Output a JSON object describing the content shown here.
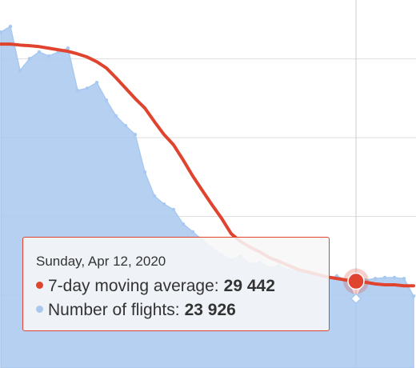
{
  "chart_data": {
    "type": "line",
    "categories": [
      null,
      null,
      null,
      null,
      null,
      null,
      null,
      null,
      null,
      null,
      null,
      null,
      null,
      null,
      null,
      null,
      null,
      null,
      null,
      null,
      null,
      null,
      null,
      null,
      null,
      null,
      null,
      null,
      null,
      null,
      null,
      null,
      null,
      null,
      null,
      null,
      null,
      "Sunday, Apr 12, 2020",
      null,
      null,
      null,
      null,
      null,
      null
    ],
    "series": [
      {
        "name": "7-day moving average",
        "color": "#e0442f",
        "values": [
          104700,
          104700,
          104400,
          104200,
          103900,
          103400,
          102900,
          102400,
          101600,
          100600,
          99100,
          97100,
          94000,
          90700,
          87400,
          84400,
          80100,
          76000,
          72700,
          67900,
          62800,
          58200,
          53700,
          49400,
          44500,
          42000,
          40200,
          38700,
          36900,
          35700,
          34400,
          33100,
          32400,
          31600,
          30800,
          30300,
          29800,
          29442,
          29100,
          28600,
          28300,
          28300,
          28000,
          28000
        ],
        "value_labels": [
          null,
          null,
          null,
          null,
          null,
          null,
          null,
          null,
          null,
          null,
          null,
          null,
          null,
          null,
          null,
          null,
          null,
          null,
          null,
          null,
          null,
          null,
          null,
          null,
          null,
          null,
          null,
          null,
          null,
          null,
          null,
          null,
          null,
          null,
          null,
          null,
          null,
          "29 442",
          null,
          null,
          null,
          null,
          null,
          null
        ]
      },
      {
        "name": "Number of flights",
        "color": "#a9c8f0",
        "values": [
          108500,
          110300,
          96300,
          100100,
          102200,
          100900,
          102200,
          103400,
          90000,
          90700,
          92500,
          86900,
          81900,
          78800,
          76000,
          64100,
          56500,
          53900,
          52200,
          47600,
          45100,
          42500,
          40000,
          37900,
          36200,
          37400,
          34900,
          35400,
          33600,
          34400,
          32900,
          32400,
          31900,
          31100,
          30300,
          31100,
          29800,
          23926,
          29800,
          30300,
          30600,
          30600,
          30300,
          24700
        ],
        "value_labels": [
          null,
          null,
          null,
          null,
          null,
          null,
          null,
          null,
          null,
          null,
          null,
          null,
          null,
          null,
          null,
          null,
          null,
          null,
          null,
          null,
          null,
          null,
          null,
          null,
          null,
          null,
          null,
          null,
          null,
          null,
          null,
          null,
          null,
          null,
          null,
          null,
          null,
          "23 926",
          null,
          null,
          null,
          null,
          null,
          null
        ]
      }
    ],
    "ylim": [
      1900,
      118700
    ],
    "yticks": [
      25000,
      50000,
      75000,
      100000
    ],
    "grid": true
  }
}
